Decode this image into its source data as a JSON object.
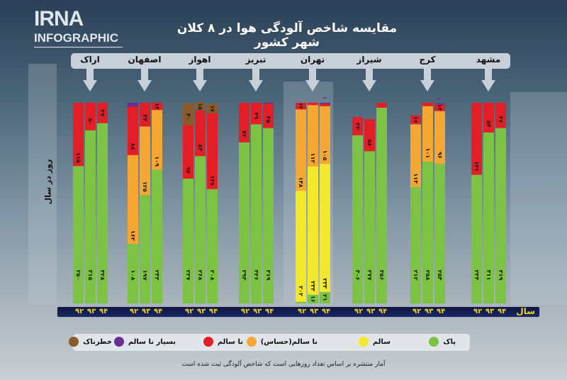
{
  "logo": {
    "brand": "IRNA",
    "sub": "INFOGRAPHIC"
  },
  "title": "مقایسه شاخص آلودگی هوا در ۸ کلان شهر کشور",
  "colors": {
    "clean": "#7cc243",
    "healthy": "#f3e82a",
    "sensitive": "#f5a732",
    "unhealthy": "#e41e26",
    "very_unhealthy": "#6a2e91",
    "hazardous": "#8b5a2b"
  },
  "legend": [
    {
      "key": "clean",
      "label": "پاک"
    },
    {
      "key": "healthy",
      "label": "سالم"
    },
    {
      "key": "sensitive",
      "label": "نا سالم(حساس)"
    },
    {
      "key": "unhealthy",
      "label": "نا سالم"
    },
    {
      "key": "very_unhealthy",
      "label": "بسیار نا سالم"
    },
    {
      "key": "hazardous",
      "label": "خطرناک"
    }
  ],
  "note": "آمار منتشره بر اساس تعداد روزهایی است که شاخص آلودگی ثبت شده است",
  "chart_data": {
    "type": "bar",
    "stacked": true,
    "ylabel": "روز در سال",
    "xlabel": "سال",
    "ylim": [
      0,
      365
    ],
    "years": [
      "۹۲",
      "۹۳",
      "۹۴"
    ],
    "stack_order": [
      "clean",
      "healthy",
      "sensitive",
      "unhealthy",
      "very_unhealthy",
      "hazardous"
    ],
    "cities": [
      {
        "name": "اراک",
        "bars": [
          {
            "clean": 250,
            "unhealthy": 115
          },
          {
            "clean": 315,
            "unhealthy": 50
          },
          {
            "clean": 328,
            "unhealthy": 37
          }
        ]
      },
      {
        "name": "اصفهان",
        "bars": [
          {
            "clean": 108,
            "sensitive": 162,
            "unhealthy": 88,
            "very_unhealthy": 7
          },
          {
            "clean": 197,
            "sensitive": 125,
            "unhealthy": 43
          },
          {
            "clean": 243,
            "sensitive": 109,
            "unhealthy": 13
          }
        ]
      },
      {
        "name": "اهواز",
        "bars": [
          {
            "clean": 227,
            "unhealthy": 97,
            "hazardous": 40
          },
          {
            "clean": 268,
            "unhealthy": 83,
            "hazardous": 15
          },
          {
            "clean": 208,
            "unhealthy": 138,
            "hazardous": 17
          }
        ]
      },
      {
        "name": "تبریز",
        "bars": [
          {
            "clean": 293,
            "unhealthy": 72
          },
          {
            "clean": 326,
            "unhealthy": 39
          },
          {
            "clean": 319,
            "unhealthy": 45,
            "very_unhealthy": 1
          }
        ]
      },
      {
        "name": "تهران",
        "bars": [
          {
            "clean": 3,
            "healthy": 202,
            "sensitive": 148,
            "unhealthy": 12
          },
          {
            "clean": 16,
            "healthy": 233,
            "sensitive": 112,
            "unhealthy": 4
          },
          {
            "clean": 21,
            "healthy": 233,
            "sensitive": 105,
            "unhealthy": 5,
            "very_unhealthy": 1
          }
        ]
      },
      {
        "name": "شیراز",
        "bars": [
          {
            "clean": 306,
            "unhealthy": 33
          },
          {
            "clean": 277,
            "unhealthy": 58
          },
          {
            "clean": 356,
            "unhealthy": 9
          }
        ]
      },
      {
        "name": "کرج",
        "bars": [
          {
            "clean": 212,
            "sensitive": 114,
            "unhealthy": 16
          },
          {
            "clean": 258,
            "sensitive": 101,
            "unhealthy": 6
          },
          {
            "clean": 254,
            "sensitive": 96,
            "unhealthy": 13,
            "very_unhealthy": 1
          }
        ]
      },
      {
        "name": "مشهد",
        "bars": [
          {
            "clean": 234,
            "unhealthy": 131
          },
          {
            "clean": 311,
            "unhealthy": 54
          },
          {
            "clean": 319,
            "unhealthy": 46
          }
        ]
      }
    ]
  }
}
